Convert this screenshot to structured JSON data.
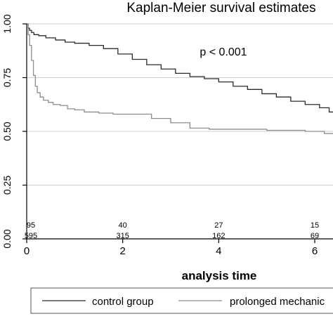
{
  "chart_data": {
    "type": "line",
    "title": "Kaplan-Meier survival estimates",
    "xlabel": "analysis time",
    "ylabel": "",
    "xlim": [
      0,
      6.5
    ],
    "ylim": [
      0,
      1
    ],
    "x_ticks": [
      "0",
      "2",
      "4",
      "6"
    ],
    "y_ticks": [
      "0.00",
      "0.25",
      "0.50",
      "0.75",
      "1.00"
    ],
    "grid": true,
    "legend_position": "bottom",
    "annotation": "p < 0.001",
    "series": [
      {
        "name": "control group",
        "color": "#2b2b2b",
        "x": [
          0,
          0.03,
          0.06,
          0.1,
          0.15,
          0.25,
          0.4,
          0.6,
          0.8,
          1.0,
          1.3,
          1.6,
          1.9,
          2.2,
          2.5,
          2.8,
          3.1,
          3.4,
          3.7,
          4.0,
          4.3,
          4.6,
          4.9,
          5.2,
          5.5,
          5.8,
          6.1,
          6.3,
          6.5
        ],
        "values": [
          1.0,
          0.98,
          0.97,
          0.96,
          0.95,
          0.945,
          0.935,
          0.925,
          0.915,
          0.91,
          0.9,
          0.885,
          0.86,
          0.835,
          0.81,
          0.79,
          0.77,
          0.755,
          0.745,
          0.73,
          0.71,
          0.695,
          0.675,
          0.66,
          0.64,
          0.625,
          0.61,
          0.59,
          0.585
        ]
      },
      {
        "name": "prolonged mechanic",
        "color": "#8c8c8c",
        "x": [
          0,
          0.03,
          0.06,
          0.1,
          0.14,
          0.18,
          0.22,
          0.28,
          0.35,
          0.45,
          0.55,
          0.7,
          0.85,
          1.0,
          1.2,
          1.5,
          1.8,
          2.2,
          2.6,
          3.0,
          3.4,
          3.8,
          4.2,
          4.6,
          5.0,
          5.4,
          5.8,
          6.2,
          6.4,
          6.45,
          6.5
        ],
        "values": [
          1.0,
          0.95,
          0.9,
          0.83,
          0.76,
          0.71,
          0.68,
          0.66,
          0.645,
          0.635,
          0.625,
          0.62,
          0.605,
          0.6,
          0.59,
          0.585,
          0.58,
          0.58,
          0.56,
          0.54,
          0.515,
          0.51,
          0.51,
          0.51,
          0.505,
          0.505,
          0.5,
          0.49,
          0.49,
          0.45,
          0.45
        ]
      }
    ],
    "risk_table": {
      "times": [
        0,
        2,
        4,
        6
      ],
      "rows": [
        {
          "counts": [
            "95",
            "40",
            "27",
            "15"
          ]
        },
        {
          "counts": [
            "595",
            "315",
            "162",
            "69"
          ]
        }
      ]
    }
  }
}
